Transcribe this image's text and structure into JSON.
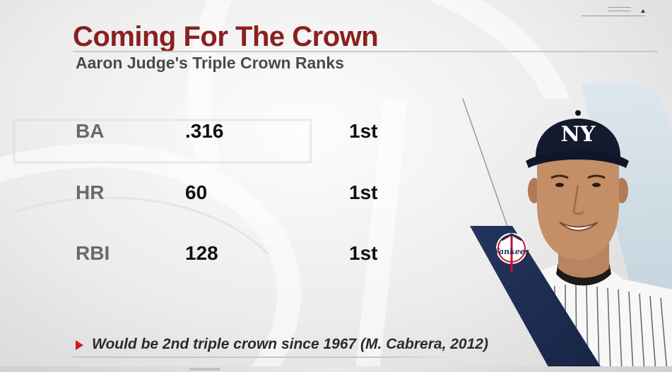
{
  "graphic": {
    "title": "Coming For The Crown",
    "subtitle": "Aaron Judge's Triple Crown Ranks"
  },
  "stats": [
    {
      "label": "BA",
      "value": ".316",
      "rank": "1st"
    },
    {
      "label": "HR",
      "value": "60",
      "rank": "1st"
    },
    {
      "label": "RBI",
      "value": "128",
      "rank": "1st"
    }
  ],
  "footnote": {
    "text": "Would be 2nd triple crown since 1967 (M. Cabrera, 2012)"
  },
  "player": {
    "cap_logo": "NY",
    "team_logo": "Yankees"
  },
  "colors": {
    "title": "#8b1f1f",
    "subtitle": "#4a4a4a",
    "accent_red": "#d0181e",
    "team_navy": "#1f2f55",
    "panel_blue": "#cfdde6"
  },
  "icons": {
    "footnote_marker": "play-triangle-icon",
    "team_logo": "yankees-logo-icon",
    "menu": "menu-lines-icon"
  }
}
